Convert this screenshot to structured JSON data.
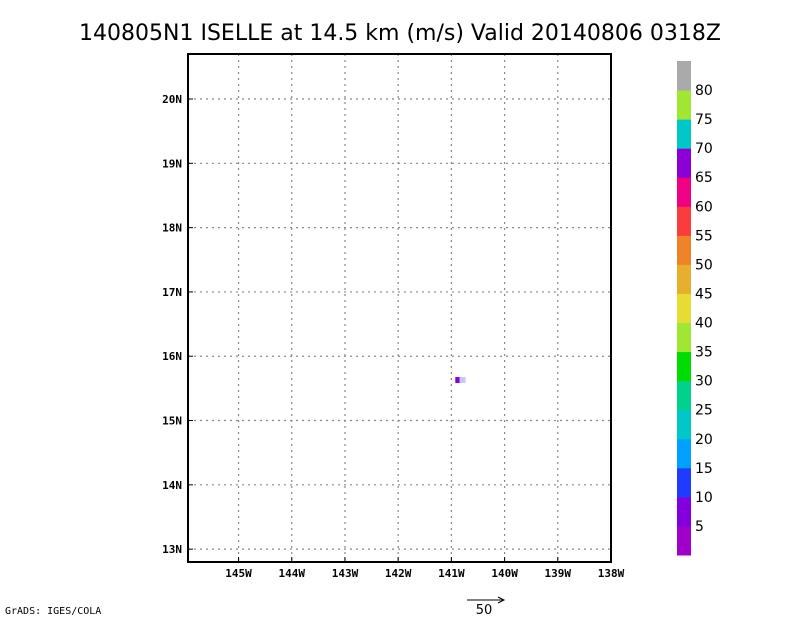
{
  "title": "140805N1 ISELLE at 14.5 km (m/s) Valid 20140806 0318Z",
  "credit": "GrADS: IGES/COLA",
  "vector_ref_label": "50",
  "chart_data": {
    "type": "heatmap",
    "title": "140805N1 ISELLE at 14.5 km (m/s) Valid 20140806 0318Z",
    "xlim": [
      -145.95,
      -138
    ],
    "ylim": [
      12.8,
      20.7
    ],
    "x_ticks": [
      {
        "value": -145,
        "label": "145W"
      },
      {
        "value": -144,
        "label": "144W"
      },
      {
        "value": -143,
        "label": "143W"
      },
      {
        "value": -142,
        "label": "142W"
      },
      {
        "value": -141,
        "label": "141W"
      },
      {
        "value": -140,
        "label": "140W"
      },
      {
        "value": -139,
        "label": "139W"
      },
      {
        "value": -138,
        "label": "138W"
      }
    ],
    "y_ticks": [
      {
        "value": 13,
        "label": "13N"
      },
      {
        "value": 14,
        "label": "14N"
      },
      {
        "value": 15,
        "label": "15N"
      },
      {
        "value": 16,
        "label": "16N"
      },
      {
        "value": 17,
        "label": "17N"
      },
      {
        "value": 18,
        "label": "18N"
      },
      {
        "value": 19,
        "label": "19N"
      },
      {
        "value": 20,
        "label": "20N"
      }
    ],
    "grid": true,
    "points": [
      {
        "lon": -140.87,
        "lat": 15.63,
        "value": 67,
        "color": "#8c00d7"
      },
      {
        "lon": -140.79,
        "lat": 15.63,
        "value": 82,
        "color": "#c8c8ff"
      }
    ],
    "colorbar": {
      "labels": [
        "5",
        "10",
        "15",
        "20",
        "25",
        "30",
        "35",
        "40",
        "45",
        "50",
        "55",
        "60",
        "65",
        "70",
        "75",
        "80"
      ],
      "colors": [
        "#a000c8",
        "#8200dc",
        "#1e3cff",
        "#00a0ff",
        "#00c8c8",
        "#00d28c",
        "#00dc00",
        "#a0e632",
        "#e6dc32",
        "#e6af2d",
        "#f08228",
        "#fa3c3c",
        "#f00082",
        "#8c00d7",
        "#00c8c8",
        "#a0e632",
        "#aaaaaa"
      ]
    }
  }
}
